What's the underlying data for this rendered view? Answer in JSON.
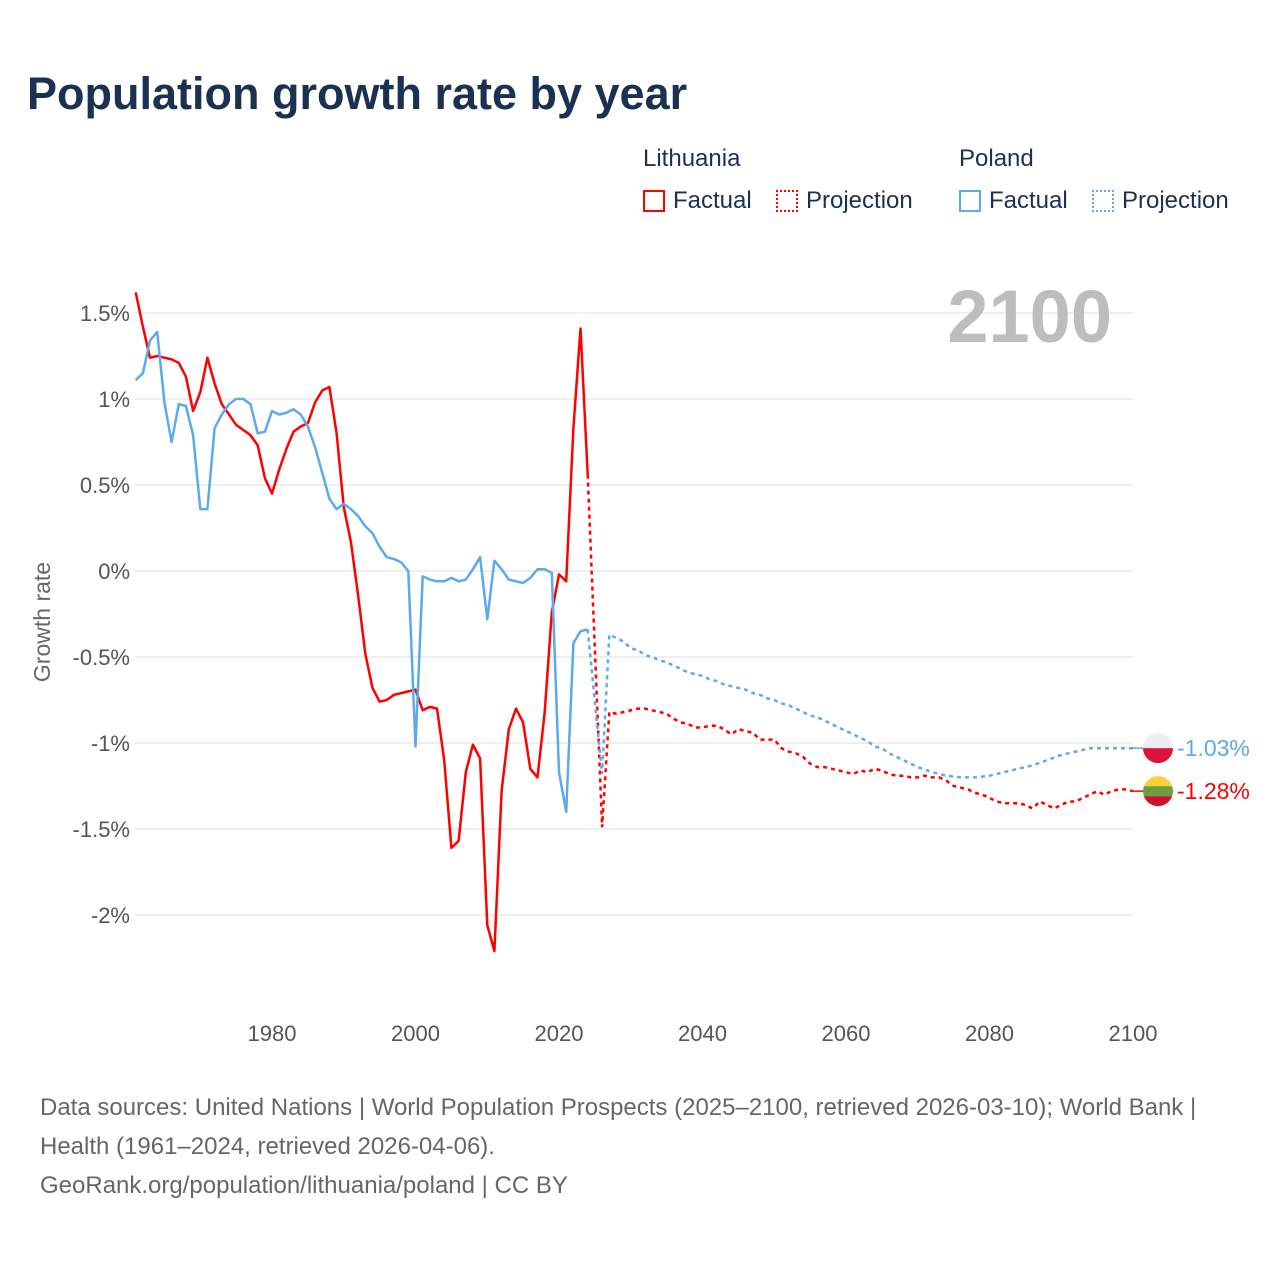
{
  "title": "Population growth rate by year",
  "legend": {
    "groups": [
      {
        "name": "Lithuania",
        "color": "#ff0000",
        "factual": "Factual",
        "projection": "Projection"
      },
      {
        "name": "Poland",
        "color": "#5ea9ec",
        "factual": "Factual",
        "projection": "Projection"
      }
    ]
  },
  "chart_data": {
    "type": "line",
    "title": "Population growth rate by year",
    "ylabel": "Growth rate",
    "xlabel": "",
    "xlim": [
      1961,
      2100
    ],
    "ylim": [
      -2.5,
      1.65
    ],
    "grid": true,
    "year_display": "2100",
    "x_ticks": [
      {
        "v": 1980,
        "label": "1980"
      },
      {
        "v": 2000,
        "label": "2000"
      },
      {
        "v": 2020,
        "label": "2020"
      },
      {
        "v": 2040,
        "label": "2040"
      },
      {
        "v": 2060,
        "label": "2060"
      },
      {
        "v": 2080,
        "label": "2080"
      },
      {
        "v": 2100,
        "label": "2100"
      }
    ],
    "y_ticks": [
      {
        "v": 1.5,
        "label": "1.5%"
      },
      {
        "v": 1,
        "label": "1%"
      },
      {
        "v": 0.5,
        "label": "0.5%"
      },
      {
        "v": 0,
        "label": "0%"
      },
      {
        "v": -0.5,
        "label": "-0.5%"
      },
      {
        "v": -1,
        "label": "-1%"
      },
      {
        "v": -1.5,
        "label": "-1.5%"
      },
      {
        "v": -2,
        "label": "-2%"
      }
    ],
    "series": [
      {
        "name": "Lithuania",
        "color": "#ff0000",
        "end_label": "-1.28%",
        "factual_start": 1961,
        "factual": [
          1.62,
          1.42,
          1.24,
          1.25,
          1.24,
          1.23,
          1.21,
          1.13,
          0.93,
          1.04,
          1.24,
          1.09,
          0.97,
          0.91,
          0.85,
          0.82,
          0.79,
          0.73,
          0.54,
          0.45,
          0.59,
          0.71,
          0.81,
          0.84,
          0.86,
          0.98,
          1.05,
          1.07,
          0.8,
          0.37,
          0.17,
          -0.14,
          -0.48,
          -0.68,
          -0.76,
          -0.75,
          -0.72,
          -0.71,
          -0.7,
          -0.69,
          -0.81,
          -0.79,
          -0.8,
          -1.1,
          -1.61,
          -1.57,
          -1.17,
          -1.01,
          -1.09,
          -2.06,
          -2.21,
          -1.28,
          -0.92,
          -0.8,
          -0.88,
          -1.15,
          -1.2,
          -0.82,
          -0.24,
          -0.02,
          -0.06,
          0.83,
          1.41,
          0.56
        ],
        "projection": [
          [
            2024,
            0.56
          ],
          [
            2025,
            -0.46
          ],
          [
            2026,
            -1.49
          ],
          [
            2027,
            -0.82
          ],
          [
            2028,
            -0.83
          ],
          [
            2029,
            -0.82
          ],
          [
            2030,
            -0.81
          ],
          [
            2031,
            -0.8
          ],
          [
            2032,
            -0.8
          ],
          [
            2033,
            -0.81
          ],
          [
            2034,
            -0.82
          ],
          [
            2035,
            -0.83
          ],
          [
            2036,
            -0.86
          ],
          [
            2037,
            -0.88
          ],
          [
            2038,
            -0.89
          ],
          [
            2039,
            -0.91
          ],
          [
            2040,
            -0.91
          ],
          [
            2041,
            -0.9
          ],
          [
            2042,
            -0.9
          ],
          [
            2043,
            -0.92
          ],
          [
            2044,
            -0.95
          ],
          [
            2045,
            -0.92
          ],
          [
            2046,
            -0.93
          ],
          [
            2047,
            -0.94
          ],
          [
            2048,
            -0.98
          ],
          [
            2049,
            -0.98
          ],
          [
            2050,
            -0.98
          ],
          [
            2051,
            -1.03
          ],
          [
            2052,
            -1.05
          ],
          [
            2053,
            -1.06
          ],
          [
            2054,
            -1.08
          ],
          [
            2055,
            -1.12
          ],
          [
            2056,
            -1.14
          ],
          [
            2057,
            -1.14
          ],
          [
            2058,
            -1.15
          ],
          [
            2059,
            -1.16
          ],
          [
            2060,
            -1.17
          ],
          [
            2061,
            -1.18
          ],
          [
            2062,
            -1.16
          ],
          [
            2063,
            -1.17
          ],
          [
            2064,
            -1.15
          ],
          [
            2065,
            -1.16
          ],
          [
            2066,
            -1.18
          ],
          [
            2067,
            -1.19
          ],
          [
            2068,
            -1.19
          ],
          [
            2069,
            -1.2
          ],
          [
            2070,
            -1.2
          ],
          [
            2071,
            -1.19
          ],
          [
            2072,
            -1.2
          ],
          [
            2073,
            -1.2
          ],
          [
            2074,
            -1.22
          ],
          [
            2075,
            -1.25
          ],
          [
            2076,
            -1.26
          ],
          [
            2077,
            -1.27
          ],
          [
            2078,
            -1.29
          ],
          [
            2079,
            -1.3
          ],
          [
            2080,
            -1.32
          ],
          [
            2081,
            -1.34
          ],
          [
            2082,
            -1.35
          ],
          [
            2083,
            -1.35
          ],
          [
            2084,
            -1.35
          ],
          [
            2085,
            -1.36
          ],
          [
            2086,
            -1.38
          ],
          [
            2087,
            -1.34
          ],
          [
            2088,
            -1.36
          ],
          [
            2089,
            -1.38
          ],
          [
            2090,
            -1.36
          ],
          [
            2091,
            -1.34
          ],
          [
            2092,
            -1.34
          ],
          [
            2093,
            -1.32
          ],
          [
            2094,
            -1.3
          ],
          [
            2095,
            -1.28
          ],
          [
            2096,
            -1.3
          ],
          [
            2097,
            -1.28
          ],
          [
            2098,
            -1.27
          ],
          [
            2099,
            -1.27
          ],
          [
            2100,
            -1.28
          ]
        ]
      },
      {
        "name": "Poland",
        "color": "#5ea9ec",
        "end_label": "-1.03%",
        "factual_start": 1961,
        "factual": [
          1.11,
          1.15,
          1.34,
          1.39,
          0.98,
          0.75,
          0.97,
          0.96,
          0.79,
          0.36,
          0.36,
          0.83,
          0.91,
          0.97,
          1.0,
          1.0,
          0.97,
          0.8,
          0.81,
          0.93,
          0.91,
          0.92,
          0.94,
          0.91,
          0.84,
          0.72,
          0.57,
          0.42,
          0.36,
          0.39,
          0.36,
          0.32,
          0.26,
          0.22,
          0.14,
          0.08,
          0.07,
          0.05,
          0.0,
          -1.02,
          -0.03,
          -0.05,
          -0.06,
          -0.06,
          -0.04,
          -0.06,
          -0.05,
          0.01,
          0.08,
          -0.28,
          0.06,
          0.01,
          -0.05,
          -0.06,
          -0.07,
          -0.04,
          0.01,
          0.01,
          -0.01,
          -1.17,
          -1.4,
          -0.42,
          -0.35,
          -0.34
        ],
        "projection": [
          [
            2024,
            -0.34
          ],
          [
            2025,
            -0.76
          ],
          [
            2026,
            -1.18
          ],
          [
            2027,
            -0.37
          ],
          [
            2028,
            -0.39
          ],
          [
            2029,
            -0.41
          ],
          [
            2030,
            -0.45
          ],
          [
            2031,
            -0.46
          ],
          [
            2032,
            -0.49
          ],
          [
            2033,
            -0.5
          ],
          [
            2034,
            -0.52
          ],
          [
            2035,
            -0.53
          ],
          [
            2036,
            -0.55
          ],
          [
            2037,
            -0.57
          ],
          [
            2038,
            -0.59
          ],
          [
            2039,
            -0.6
          ],
          [
            2040,
            -0.61
          ],
          [
            2041,
            -0.63
          ],
          [
            2042,
            -0.64
          ],
          [
            2043,
            -0.66
          ],
          [
            2044,
            -0.67
          ],
          [
            2045,
            -0.68
          ],
          [
            2046,
            -0.69
          ],
          [
            2047,
            -0.71
          ],
          [
            2048,
            -0.72
          ],
          [
            2049,
            -0.74
          ],
          [
            2050,
            -0.75
          ],
          [
            2051,
            -0.77
          ],
          [
            2052,
            -0.78
          ],
          [
            2053,
            -0.8
          ],
          [
            2054,
            -0.82
          ],
          [
            2055,
            -0.84
          ],
          [
            2056,
            -0.85
          ],
          [
            2057,
            -0.87
          ],
          [
            2058,
            -0.89
          ],
          [
            2059,
            -0.91
          ],
          [
            2060,
            -0.93
          ],
          [
            2061,
            -0.95
          ],
          [
            2062,
            -0.97
          ],
          [
            2063,
            -0.99
          ],
          [
            2064,
            -1.02
          ],
          [
            2065,
            -1.03
          ],
          [
            2066,
            -1.06
          ],
          [
            2067,
            -1.08
          ],
          [
            2068,
            -1.1
          ],
          [
            2070,
            -1.14
          ],
          [
            2072,
            -1.17
          ],
          [
            2074,
            -1.19
          ],
          [
            2076,
            -1.2
          ],
          [
            2078,
            -1.2
          ],
          [
            2080,
            -1.19
          ],
          [
            2082,
            -1.17
          ],
          [
            2084,
            -1.15
          ],
          [
            2086,
            -1.13
          ],
          [
            2088,
            -1.1
          ],
          [
            2090,
            -1.07
          ],
          [
            2092,
            -1.05
          ],
          [
            2094,
            -1.03
          ],
          [
            2096,
            -1.03
          ],
          [
            2098,
            -1.03
          ],
          [
            2100,
            -1.03
          ]
        ]
      }
    ]
  },
  "footer": {
    "sources": "Data sources: United Nations | World Population Prospects (2025–2100, retrieved 2026-03-10); World Bank | Health (1961–2024, retrieved 2026-04-06).",
    "credit": "GeoRank.org/population/lithuania/poland | CC BY"
  }
}
